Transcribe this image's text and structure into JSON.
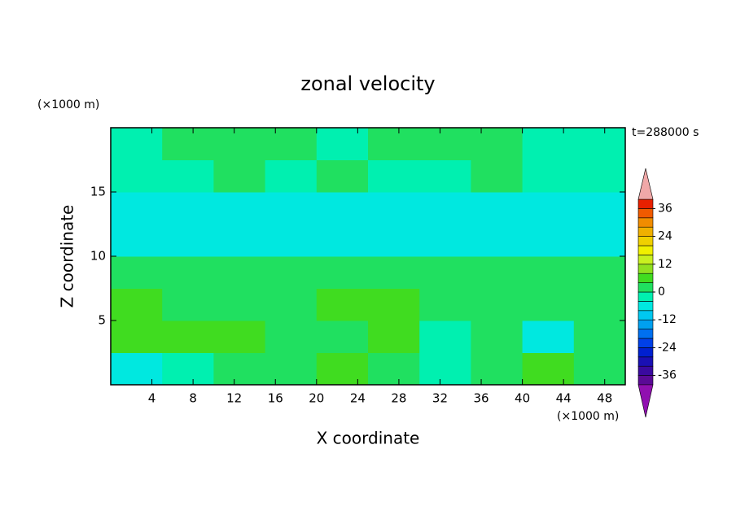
{
  "chart_data": {
    "type": "contour",
    "title": "zonal velocity",
    "xlabel": "X coordinate",
    "ylabel": "Z coordinate",
    "x_unit": "(×1000 m)",
    "y_unit": "(×1000 m)",
    "time_label": "t=288000 s",
    "xlim": [
      0,
      50
    ],
    "ylim": [
      0,
      20
    ],
    "xticks": [
      4,
      8,
      12,
      16,
      20,
      24,
      28,
      32,
      36,
      40,
      44,
      48
    ],
    "yticks": [
      5,
      10,
      15
    ],
    "x": [
      2.5,
      7.5,
      12.5,
      17.5,
      22.5,
      27.5,
      32.5,
      37.5,
      42.5,
      47.5
    ],
    "y": [
      1.25,
      3.75,
      6.25,
      8.75,
      11.25,
      13.75,
      16.25,
      18.75
    ],
    "z": [
      [
        -6,
        -4,
        0,
        2,
        6,
        2,
        -2,
        2,
        4,
        0
      ],
      [
        6,
        4,
        6,
        0,
        2,
        6,
        -2,
        0,
        -6,
        0
      ],
      [
        6,
        2,
        2,
        2,
        6,
        4,
        2,
        2,
        2,
        0
      ],
      [
        2,
        2,
        0,
        0,
        2,
        2,
        0,
        0,
        0,
        2
      ],
      [
        -6,
        -6,
        -6,
        -6,
        -6,
        -6,
        -6,
        -6,
        -6,
        -6
      ],
      [
        -6,
        -6,
        -6,
        -6,
        -6,
        -6,
        -6,
        -6,
        -6,
        -6
      ],
      [
        -2,
        -2,
        0,
        -2,
        0,
        -2,
        -2,
        0,
        -2,
        -2
      ],
      [
        -2,
        0,
        2,
        0,
        -2,
        0,
        2,
        0,
        -2,
        -2
      ]
    ],
    "levels": [
      -40,
      -36,
      -32,
      -28,
      -24,
      -20,
      -16,
      -12,
      -8,
      -4,
      0,
      4,
      8,
      12,
      16,
      20,
      24,
      28,
      32,
      36,
      40
    ],
    "colors": [
      "#5a0a96",
      "#3a0aa0",
      "#1a10b4",
      "#0020d0",
      "#0040e8",
      "#0070f0",
      "#00a0f0",
      "#00c8f0",
      "#00e8e0",
      "#00f0b0",
      "#20e060",
      "#40dc20",
      "#90e020",
      "#c8f020",
      "#f0f000",
      "#f0d000",
      "#f0b000",
      "#f08c00",
      "#f05a00",
      "#e82000"
    ],
    "under_color": "#9010b0",
    "over_color": "#f0a8a8",
    "cbar_ticks": [
      -36,
      -24,
      -12,
      0,
      12,
      24,
      36
    ]
  }
}
